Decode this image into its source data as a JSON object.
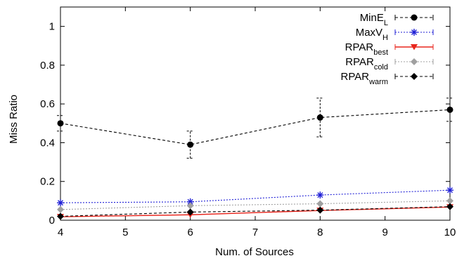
{
  "chart_data": {
    "type": "line",
    "xlabel": "Num. of Sources",
    "ylabel": "Miss Ratio",
    "xlim": [
      4,
      10
    ],
    "ylim": [
      0,
      1.1
    ],
    "xticks": [
      4,
      5,
      6,
      7,
      8,
      9,
      10
    ],
    "yticks": [
      0,
      0.2,
      0.4,
      0.6,
      0.8,
      1
    ],
    "x": [
      4,
      6,
      8,
      10
    ],
    "legend_position": "top-right",
    "grid": false,
    "series": [
      {
        "name": "MinE",
        "name_sub": "L",
        "color": "#000000",
        "dash": "dashed",
        "marker": "circle",
        "values": [
          0.5,
          0.39,
          0.53,
          0.57
        ],
        "err_low": [
          0.46,
          0.32,
          0.43,
          0.51
        ],
        "err_high": [
          0.54,
          0.46,
          0.63,
          0.63
        ]
      },
      {
        "name": "MaxV",
        "name_sub": "H",
        "color": "#1f1fd6",
        "dash": "dotted",
        "marker": "asterisk",
        "values": [
          0.09,
          0.095,
          0.13,
          0.155
        ]
      },
      {
        "name": "RPAR",
        "name_sub": "best",
        "color": "#e8261d",
        "dash": "solid",
        "marker": "triangle-down",
        "values": [
          0.018,
          0.028,
          0.05,
          0.068
        ]
      },
      {
        "name": "RPAR",
        "name_sub": "cold",
        "color": "#a0a0a0",
        "dash": "dotted",
        "marker": "diamond",
        "values": [
          0.055,
          0.075,
          0.085,
          0.1
        ]
      },
      {
        "name": "RPAR",
        "name_sub": "warm",
        "color": "#000000",
        "dash": "dashed",
        "marker": "diamond",
        "values": [
          0.02,
          0.042,
          0.052,
          0.07
        ]
      }
    ]
  }
}
